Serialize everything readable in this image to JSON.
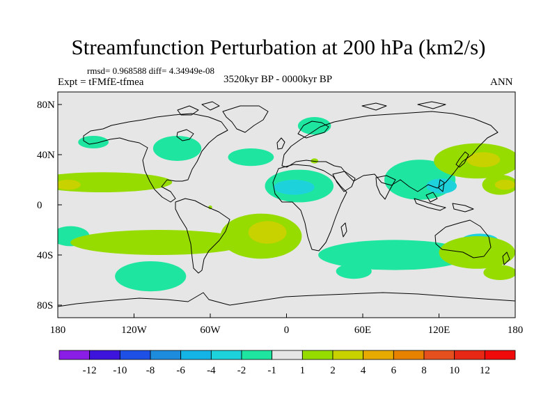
{
  "figure": {
    "title": "Streamfunction Perturbation at 200 hPa (km2/s)",
    "stats_line": "rmsd= 0.968588 diff= 4.34949e-08",
    "experiment_label": "Expt = tFMfE-tfmea",
    "period_label": "3520kyr BP - 0000kyr BP",
    "season_label": "ANN"
  },
  "chart_data": {
    "type": "heatmap",
    "projection": "cylindrical-equidistant",
    "title": "Streamfunction Perturbation at 200 hPa (km2/s)",
    "variable": "Streamfunction Perturbation",
    "level": "200 hPa",
    "units": "km2/s",
    "lon_range": [
      -180,
      180
    ],
    "lat_range": [
      -90,
      90
    ],
    "x_ticks": [
      {
        "value": -180,
        "label": "180"
      },
      {
        "value": -120,
        "label": "120W"
      },
      {
        "value": -60,
        "label": "60W"
      },
      {
        "value": 0,
        "label": "0"
      },
      {
        "value": 60,
        "label": "60E"
      },
      {
        "value": 120,
        "label": "120E"
      },
      {
        "value": 180,
        "label": "180"
      }
    ],
    "y_ticks": [
      {
        "value": 80,
        "label": "80N"
      },
      {
        "value": 40,
        "label": "40N"
      },
      {
        "value": 0,
        "label": "0"
      },
      {
        "value": -40,
        "label": "40S"
      },
      {
        "value": -80,
        "label": "80S"
      }
    ],
    "colorbar": {
      "boundaries": [
        "-12",
        "-10",
        "-8",
        "-6",
        "-4",
        "-2",
        "-1",
        "1",
        "2",
        "4",
        "6",
        "8",
        "10",
        "12"
      ],
      "colors": [
        "#8a1ee6",
        "#3c14dc",
        "#1e50e6",
        "#1e8cdc",
        "#14b4e6",
        "#1ed2dc",
        "#1ee6a0",
        "#e6e6e6",
        "#96dc00",
        "#c8d200",
        "#e6aa00",
        "#e68200",
        "#e6501e",
        "#e62814",
        "#f00a0a"
      ]
    },
    "anomaly_regions": [
      {
        "level": "-1 to -2",
        "color": "#1ee6a0",
        "lon": -152,
        "lat": 50,
        "r_lon": 12,
        "r_lat": 5
      },
      {
        "level": "-1 to -2",
        "color": "#1ee6a0",
        "lon": -86,
        "lat": 45,
        "r_lon": 19,
        "r_lat": 10
      },
      {
        "level": "-1 to -2",
        "color": "#1ee6a0",
        "lon": -28,
        "lat": 38,
        "r_lon": 18,
        "r_lat": 7
      },
      {
        "level": "-1 to -2",
        "color": "#1ee6a0",
        "lon": 22,
        "lat": 63,
        "r_lon": 13,
        "r_lat": 7
      },
      {
        "level": "-1 to -2",
        "color": "#1ee6a0",
        "lon": 10,
        "lat": 15,
        "r_lon": 27,
        "r_lat": 13
      },
      {
        "level": "-2 to -4",
        "color": "#1ed2dc",
        "lon": 6,
        "lat": 14,
        "r_lon": 16,
        "r_lat": 6
      },
      {
        "level": "-1 to -2",
        "color": "#1ee6a0",
        "lon": 105,
        "lat": 20,
        "r_lon": 28,
        "r_lat": 16
      },
      {
        "level": "-2 to -4",
        "color": "#1ed2dc",
        "lon": 122,
        "lat": 15,
        "r_lon": 12,
        "r_lat": 6
      },
      {
        "level": "-1 to -2",
        "color": "#1ee6a0",
        "lon": -107,
        "lat": -57,
        "r_lon": 28,
        "r_lat": 12
      },
      {
        "level": "-1 to -2",
        "color": "#1ee6a0",
        "lon": 85,
        "lat": -40,
        "r_lon": 60,
        "r_lat": 12
      },
      {
        "level": "-2 to -4",
        "color": "#1ed2dc",
        "lon": 152,
        "lat": -29,
        "r_lon": 15,
        "r_lat": 6
      },
      {
        "level": "-1 to -2",
        "color": "#1ee6a0",
        "lon": 53,
        "lat": -53,
        "r_lon": 14,
        "r_lat": 6
      },
      {
        "level": "-1 to -2",
        "color": "#1ee6a0",
        "lon": -170,
        "lat": -25,
        "r_lon": 15,
        "r_lat": 8
      },
      {
        "level": "1 to 2",
        "color": "#96dc00",
        "lon": -145,
        "lat": 18,
        "r_lon": 55,
        "r_lat": 8
      },
      {
        "level": "2 to 4",
        "color": "#c8d200",
        "lon": -172,
        "lat": 16,
        "r_lon": 10,
        "r_lat": 4
      },
      {
        "level": "1 to 2",
        "color": "#96dc00",
        "lon": -100,
        "lat": -30,
        "r_lon": 70,
        "r_lat": 10
      },
      {
        "level": "1 to 2",
        "color": "#96dc00",
        "lon": -20,
        "lat": -25,
        "r_lon": 32,
        "r_lat": 18
      },
      {
        "level": "2 to 4",
        "color": "#c8d200",
        "lon": -15,
        "lat": -22,
        "r_lon": 15,
        "r_lat": 9
      },
      {
        "level": "1 to 2",
        "color": "#96dc00",
        "lon": 150,
        "lat": 35,
        "r_lon": 34,
        "r_lat": 14
      },
      {
        "level": "2 to 4",
        "color": "#c8d200",
        "lon": 155,
        "lat": 36,
        "r_lon": 13,
        "r_lat": 6
      },
      {
        "level": "1 to 2",
        "color": "#96dc00",
        "lon": 168,
        "lat": 16,
        "r_lon": 14,
        "r_lat": 8
      },
      {
        "level": "2 to 4",
        "color": "#c8d200",
        "lon": 172,
        "lat": 16,
        "r_lon": 8,
        "r_lat": 4
      },
      {
        "level": "1 to 2",
        "color": "#96dc00",
        "lon": 150,
        "lat": -38,
        "r_lon": 30,
        "r_lat": 13
      },
      {
        "level": "1 to 2",
        "color": "#96dc00",
        "lon": 168,
        "lat": -54,
        "r_lon": 13,
        "r_lat": 6
      },
      {
        "level": "1 to 2",
        "color": "#96dc00",
        "lon": 22,
        "lat": 35,
        "r_lon": 3,
        "r_lat": 2
      },
      {
        "level": "1 to 2",
        "color": "#96dc00",
        "lon": -60,
        "lat": -2,
        "r_lon": 1.5,
        "r_lat": 1.5
      }
    ]
  },
  "legend": {
    "coastlines": "Coastlines",
    "no_anomaly": "between -1 and 1"
  }
}
